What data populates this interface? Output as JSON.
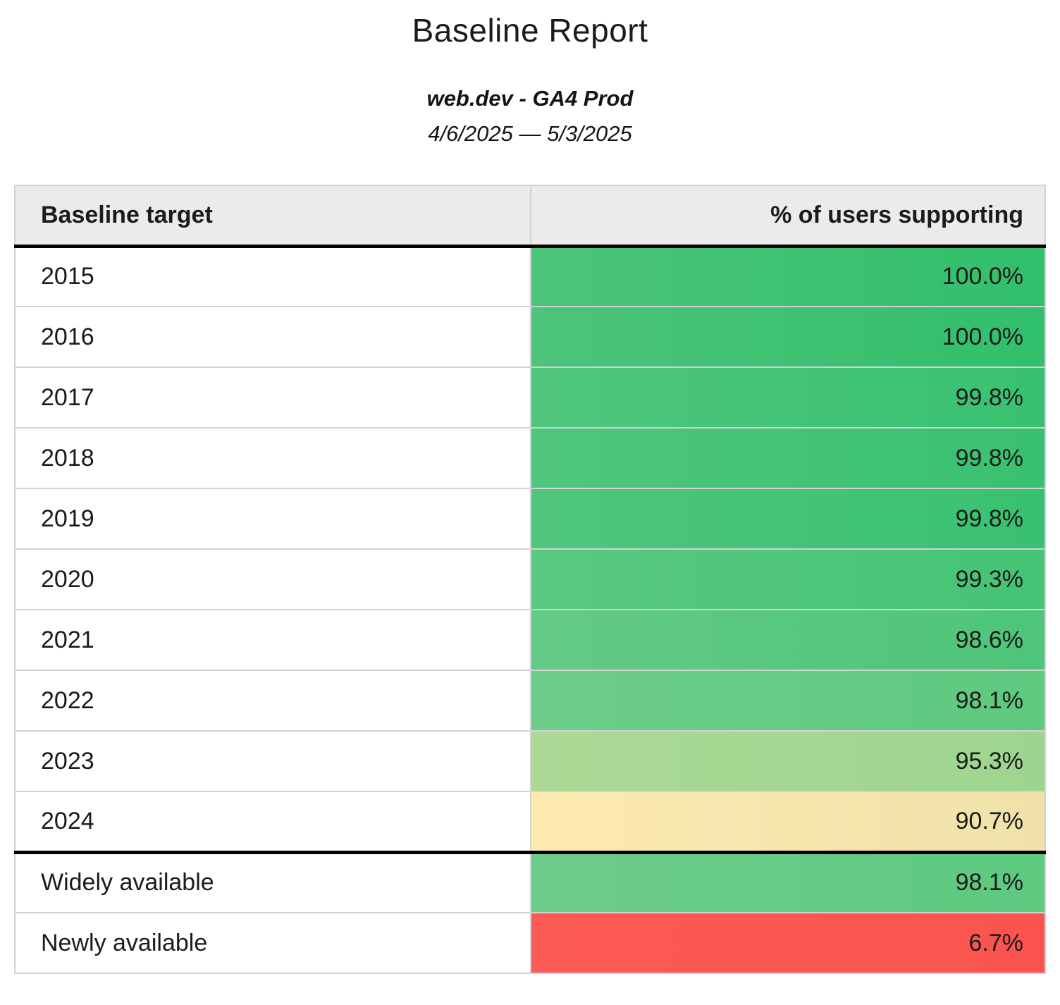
{
  "header": {
    "title": "Baseline Report",
    "subtitle": "web.dev - GA4 Prod",
    "date_range": "4/6/2025 — 5/3/2025"
  },
  "table": {
    "columns": [
      "Baseline target",
      "% of users supporting"
    ],
    "rows": [
      {
        "label": "2015",
        "value": "100.0%",
        "color_left": "#4cc47a",
        "color_right": "#31bf6b",
        "separator_above": false
      },
      {
        "label": "2016",
        "value": "100.0%",
        "color_left": "#4cc47a",
        "color_right": "#31bf6b",
        "separator_above": false
      },
      {
        "label": "2017",
        "value": "99.8%",
        "color_left": "#50c67d",
        "color_right": "#38c170",
        "separator_above": false
      },
      {
        "label": "2018",
        "value": "99.8%",
        "color_left": "#50c67d",
        "color_right": "#38c170",
        "separator_above": false
      },
      {
        "label": "2019",
        "value": "99.8%",
        "color_left": "#50c67d",
        "color_right": "#38c170",
        "separator_above": false
      },
      {
        "label": "2020",
        "value": "99.3%",
        "color_left": "#59c880",
        "color_right": "#45c475",
        "separator_above": false
      },
      {
        "label": "2021",
        "value": "98.6%",
        "color_left": "#63ca85",
        "color_right": "#4ec578",
        "separator_above": false
      },
      {
        "label": "2022",
        "value": "98.1%",
        "color_left": "#6ecd8b",
        "color_right": "#5dc97f",
        "separator_above": false
      },
      {
        "label": "2023",
        "value": "95.3%",
        "color_left": "#abd995",
        "color_right": "#9ed58e",
        "separator_above": false
      },
      {
        "label": "2024",
        "value": "90.7%",
        "color_left": "#fdeab1",
        "color_right": "#efe2a8",
        "separator_above": false
      },
      {
        "label": "Widely available",
        "value": "98.1%",
        "color_left": "#6ecd8b",
        "color_right": "#5dc97f",
        "separator_above": true
      },
      {
        "label": "Newly available",
        "value": "6.7%",
        "color_left": "#fc5a55",
        "color_right": "#fb544f",
        "separator_above": false
      }
    ]
  },
  "chart_data": {
    "type": "table",
    "title": "Baseline Report",
    "subtitle": "web.dev - GA4 Prod",
    "date_range": "4/6/2025 — 5/3/2025",
    "columns": [
      "Baseline target",
      "% of users supporting"
    ],
    "categories": [
      "2015",
      "2016",
      "2017",
      "2018",
      "2019",
      "2020",
      "2021",
      "2022",
      "2023",
      "2024",
      "Widely available",
      "Newly available"
    ],
    "values": [
      100.0,
      100.0,
      99.8,
      99.8,
      99.8,
      99.3,
      98.6,
      98.1,
      95.3,
      90.7,
      98.1,
      6.7
    ],
    "value_format": "percent",
    "color_scale": {
      "high_color": "#31bf6b",
      "mid_color": "#fdeab1",
      "low_color": "#fc5a55"
    }
  }
}
